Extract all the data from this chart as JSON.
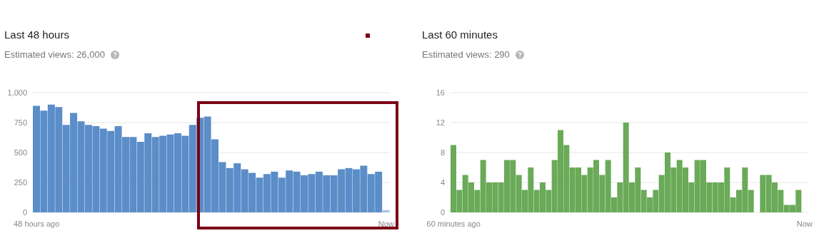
{
  "chart_data": [
    {
      "type": "bar",
      "title": "Last 48 hours",
      "subtitle": "Estimated views: 26,000",
      "categories": [
        "48 hours ago",
        null,
        null,
        null,
        null,
        null,
        null,
        null,
        null,
        null,
        null,
        null,
        null,
        null,
        null,
        null,
        null,
        null,
        null,
        null,
        null,
        null,
        null,
        null,
        null,
        null,
        null,
        null,
        null,
        null,
        null,
        null,
        null,
        null,
        null,
        null,
        null,
        null,
        null,
        null,
        null,
        null,
        null,
        null,
        null,
        null,
        null,
        "Now"
      ],
      "values": [
        890,
        850,
        900,
        880,
        730,
        830,
        760,
        730,
        720,
        700,
        680,
        720,
        630,
        630,
        590,
        660,
        630,
        640,
        650,
        660,
        640,
        730,
        790,
        800,
        610,
        420,
        370,
        410,
        360,
        330,
        290,
        320,
        340,
        290,
        350,
        340,
        310,
        320,
        340,
        310,
        310,
        360,
        370,
        360,
        390,
        320,
        340,
        20
      ],
      "colors": [
        "#5b8dc8",
        "#5b8dc8",
        "#5b8dc8",
        "#5b8dc8",
        "#5b8dc8",
        "#5b8dc8",
        "#5b8dc8",
        "#5b8dc8",
        "#5b8dc8",
        "#5b8dc8",
        "#5b8dc8",
        "#5b8dc8",
        "#5b8dc8",
        "#5b8dc8",
        "#5b8dc8",
        "#5b8dc8",
        "#5b8dc8",
        "#5b8dc8",
        "#5b8dc8",
        "#5b8dc8",
        "#5b8dc8",
        "#5b8dc8",
        "#5b8dc8",
        "#5b8dc8",
        "#5b8dc8",
        "#5b8dc8",
        "#5b8dc8",
        "#5b8dc8",
        "#5b8dc8",
        "#5b8dc8",
        "#5b8dc8",
        "#5b8dc8",
        "#5b8dc8",
        "#5b8dc8",
        "#5b8dc8",
        "#5b8dc8",
        "#5b8dc8",
        "#5b8dc8",
        "#5b8dc8",
        "#5b8dc8",
        "#5b8dc8",
        "#5b8dc8",
        "#5b8dc8",
        "#5b8dc8",
        "#5b8dc8",
        "#5b8dc8",
        "#5b8dc8",
        "#a9c6e8"
      ],
      "ylim": [
        0,
        1000
      ],
      "yticks": [
        0,
        250,
        500,
        750,
        {
          "value": 1000,
          "label": "1,000"
        }
      ],
      "grid": "y",
      "legend": false
    },
    {
      "type": "bar",
      "title": "Last 60 minutes",
      "subtitle": "Estimated views: 290",
      "categories": [
        "60 minutes ago",
        null,
        null,
        null,
        null,
        null,
        null,
        null,
        null,
        null,
        null,
        null,
        null,
        null,
        null,
        null,
        null,
        null,
        null,
        null,
        null,
        null,
        null,
        null,
        null,
        null,
        null,
        null,
        null,
        null,
        null,
        null,
        null,
        null,
        null,
        null,
        null,
        null,
        null,
        null,
        null,
        null,
        null,
        null,
        null,
        null,
        null,
        null,
        null,
        null,
        null,
        null,
        null,
        null,
        null,
        null,
        null,
        null,
        null,
        "Now"
      ],
      "values": [
        9,
        3,
        5,
        4,
        3,
        7,
        4,
        4,
        4,
        7,
        7,
        5,
        3,
        6,
        3,
        4,
        3,
        7,
        11,
        9,
        6,
        6,
        5,
        6,
        7,
        5,
        7,
        2,
        4,
        12,
        4,
        6,
        3,
        2,
        3,
        5,
        8,
        6,
        7,
        6,
        4,
        7,
        7,
        4,
        4,
        4,
        6,
        2,
        3,
        6,
        3,
        null,
        5,
        5,
        4,
        3,
        1,
        1,
        3,
        null
      ],
      "color": "#6aaa58",
      "ylim": [
        0,
        16
      ],
      "yticks": [
        0,
        4,
        8,
        12,
        16
      ],
      "grid": "y",
      "legend": false
    }
  ]
}
